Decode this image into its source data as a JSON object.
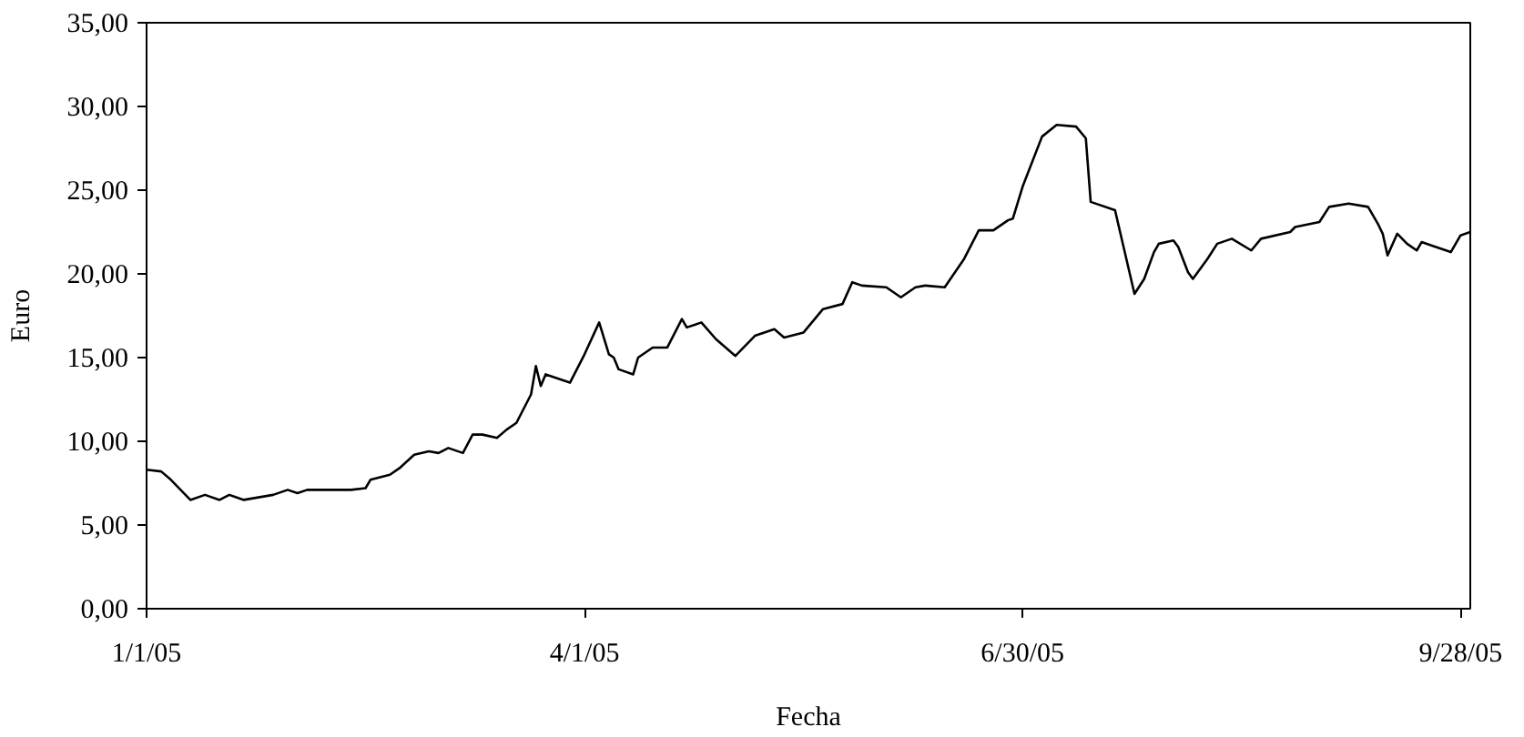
{
  "chart_data": {
    "type": "line",
    "xlabel": "Fecha",
    "ylabel": "Euro",
    "x": [
      "2005-01-01",
      "2005-01-04",
      "2005-01-06",
      "2005-01-10",
      "2005-01-13",
      "2005-01-16",
      "2005-01-18",
      "2005-01-21",
      "2005-01-27",
      "2005-01-30",
      "2005-02-01",
      "2005-02-03",
      "2005-02-12",
      "2005-02-15",
      "2005-02-16",
      "2005-02-20",
      "2005-02-22",
      "2005-02-25",
      "2005-02-28",
      "2005-03-02",
      "2005-03-04",
      "2005-03-07",
      "2005-03-09",
      "2005-03-11",
      "2005-03-14",
      "2005-03-16",
      "2005-03-18",
      "2005-03-21",
      "2005-03-22",
      "2005-03-23",
      "2005-03-24",
      "2005-03-29",
      "2005-04-01",
      "2005-04-04",
      "2005-04-06",
      "2005-04-07",
      "2005-04-08",
      "2005-04-11",
      "2005-04-12",
      "2005-04-15",
      "2005-04-18",
      "2005-04-21",
      "2005-04-22",
      "2005-04-25",
      "2005-04-28",
      "2005-05-02",
      "2005-05-06",
      "2005-05-10",
      "2005-05-12",
      "2005-05-16",
      "2005-05-20",
      "2005-05-24",
      "2005-05-26",
      "2005-05-28",
      "2005-06-02",
      "2005-06-05",
      "2005-06-08",
      "2005-06-10",
      "2005-06-14",
      "2005-06-18",
      "2005-06-21",
      "2005-06-24",
      "2005-06-27",
      "2005-06-28",
      "2005-06-30",
      "2005-07-04",
      "2005-07-07",
      "2005-07-11",
      "2005-07-13",
      "2005-07-14",
      "2005-07-19",
      "2005-07-21",
      "2005-07-23",
      "2005-07-25",
      "2005-07-27",
      "2005-07-28",
      "2005-07-31",
      "2005-08-01",
      "2005-08-03",
      "2005-08-04",
      "2005-08-07",
      "2005-08-09",
      "2005-08-12",
      "2005-08-16",
      "2005-08-18",
      "2005-08-24",
      "2005-08-25",
      "2005-08-30",
      "2005-09-01",
      "2005-09-05",
      "2005-09-09",
      "2005-09-11",
      "2005-09-12",
      "2005-09-13",
      "2005-09-15",
      "2005-09-17",
      "2005-09-19",
      "2005-09-20",
      "2005-09-22",
      "2005-09-26",
      "2005-09-28",
      "2005-09-30"
    ],
    "series": [
      {
        "color": "#000000",
        "values": [
          8.3,
          8.2,
          7.7,
          6.5,
          6.8,
          6.5,
          6.8,
          6.5,
          6.8,
          7.1,
          6.9,
          7.1,
          7.1,
          7.2,
          7.7,
          8.0,
          8.4,
          9.2,
          9.4,
          9.3,
          9.6,
          9.3,
          10.4,
          10.4,
          10.2,
          10.7,
          11.1,
          12.8,
          14.5,
          13.3,
          14.0,
          13.5,
          15.2,
          17.1,
          15.2,
          15.0,
          14.3,
          14.0,
          15.0,
          15.6,
          15.6,
          17.3,
          16.8,
          17.1,
          16.1,
          15.1,
          16.3,
          16.7,
          16.2,
          16.5,
          17.9,
          18.2,
          19.5,
          19.3,
          19.2,
          18.6,
          19.2,
          19.3,
          19.2,
          20.9,
          22.6,
          22.6,
          23.2,
          23.3,
          25.2,
          28.2,
          28.9,
          28.8,
          28.1,
          24.3,
          23.8,
          21.3,
          18.8,
          19.7,
          21.3,
          21.8,
          22.0,
          21.6,
          20.1,
          19.7,
          20.9,
          21.8,
          22.1,
          21.4,
          22.1,
          22.5,
          22.8,
          23.1,
          24.0,
          24.2,
          24.0,
          23.0,
          22.4,
          21.1,
          22.4,
          21.8,
          21.4,
          21.9,
          21.7,
          21.3,
          22.3,
          22.5
        ]
      }
    ],
    "xlim": [
      "2005-01-01",
      "2005-09-30"
    ],
    "xticks": [
      {
        "value": "2005-01-01",
        "label": "1/1/05"
      },
      {
        "value": "2005-04-01",
        "label": "4/1/05"
      },
      {
        "value": "2005-06-30",
        "label": "6/30/05"
      },
      {
        "value": "2005-09-28",
        "label": "9/28/05"
      }
    ],
    "ylim": [
      0,
      35
    ],
    "yticks": [
      {
        "value": 0,
        "label": "0,00"
      },
      {
        "value": 5,
        "label": "5,00"
      },
      {
        "value": 10,
        "label": "10,00"
      },
      {
        "value": 15,
        "label": "15,00"
      },
      {
        "value": 20,
        "label": "20,00"
      },
      {
        "value": 25,
        "label": "25,00"
      },
      {
        "value": 30,
        "label": "30,00"
      },
      {
        "value": 35,
        "label": "35,00"
      }
    ],
    "grid": false,
    "line_style": "solid"
  }
}
